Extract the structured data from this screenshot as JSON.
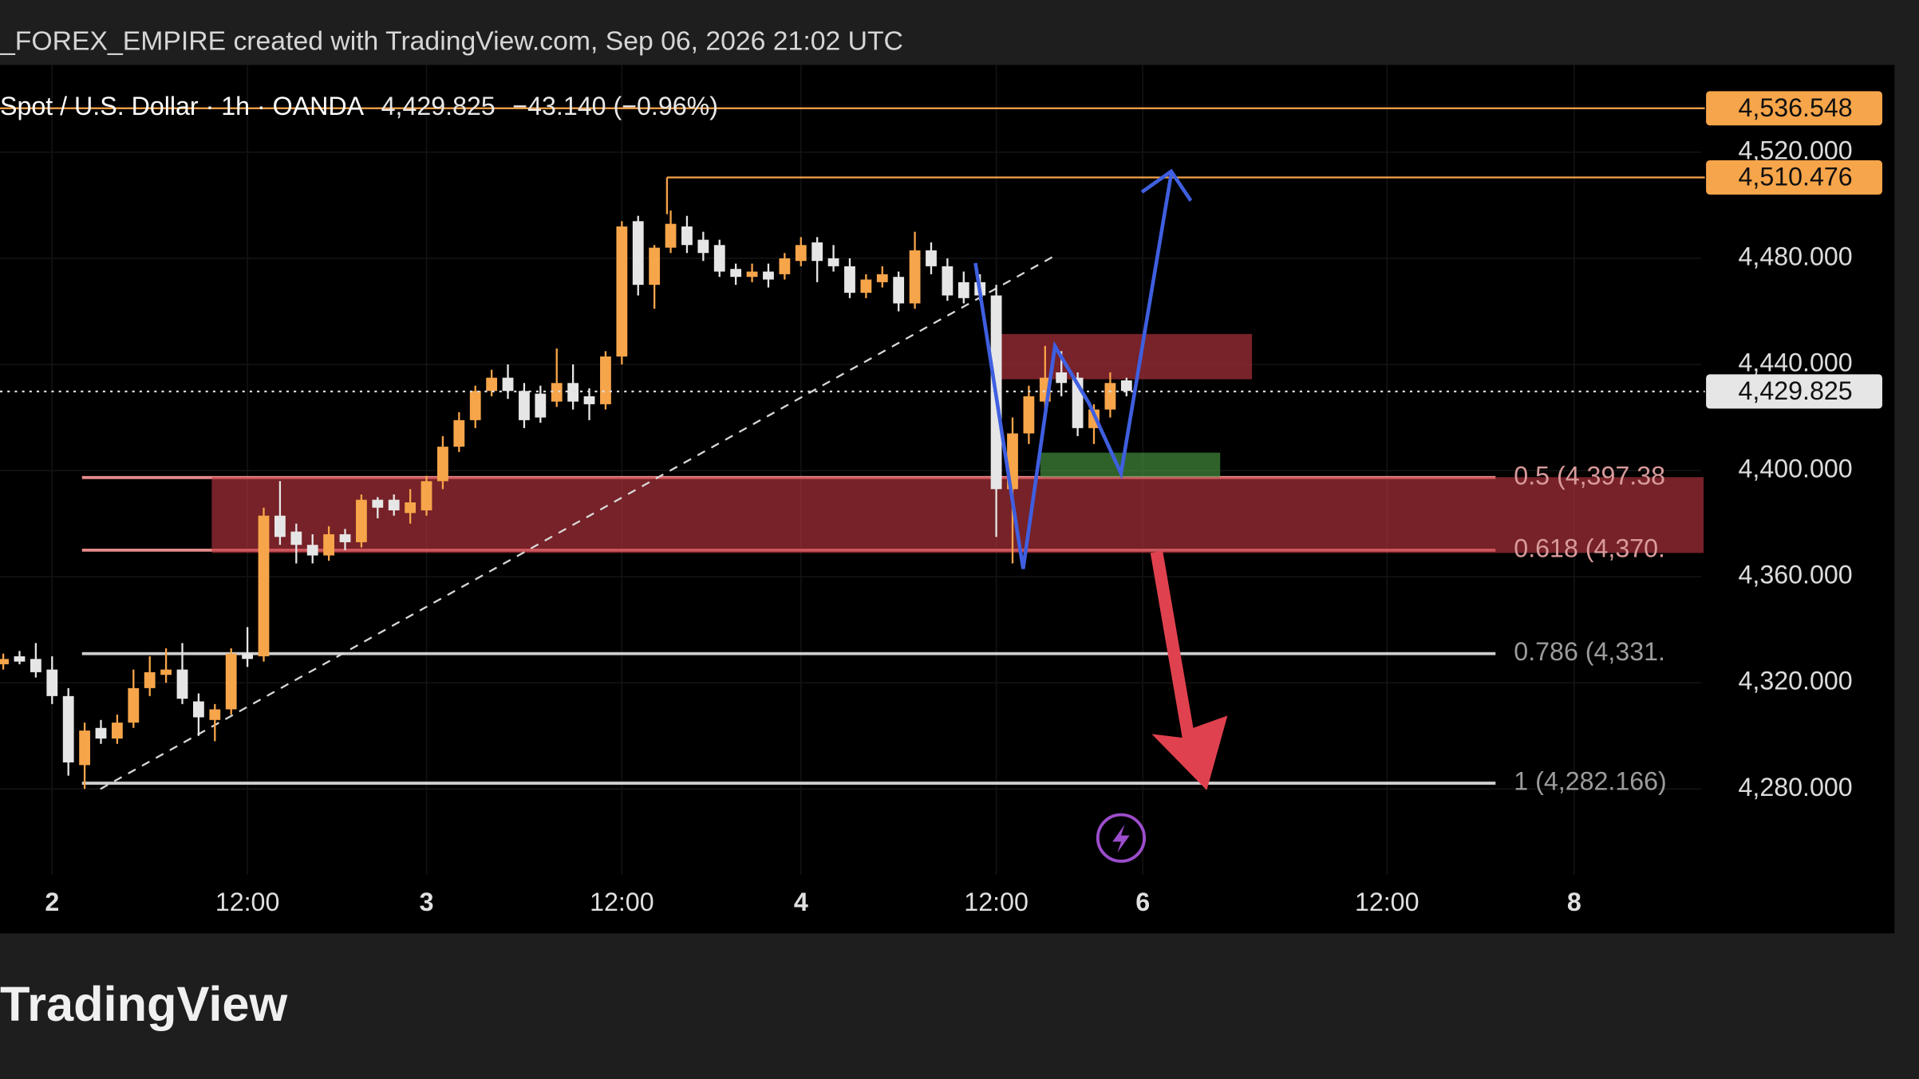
{
  "header": {
    "title": "_FOREX_EMPIRE created with TradingView.com, Sep 06, 2026 21:02 UTC"
  },
  "chart_data": {
    "type": "candlestick",
    "legend": {
      "symbol": "Spot / U.S. Dollar · 1h · OANDA",
      "last": "4,429.825",
      "change": "−43.140 (−0.96%)"
    },
    "up_color": "#f7a54a",
    "down_color": "#e6e6e6",
    "open": [
      4327,
      4330,
      4329,
      4325,
      4315,
      4289,
      4303,
      4299,
      4305,
      4318,
      4323,
      4325,
      4313,
      4306,
      4310,
      4331,
      4330,
      4383,
      4377,
      4372,
      4368,
      4376,
      4373,
      4389,
      4389,
      4384,
      4385,
      4396,
      4409,
      4419,
      4430,
      4435,
      4430,
      4429,
      4426,
      4433,
      4428,
      4425,
      4443,
      4494,
      4470,
      4484,
      4492,
      4487,
      4485,
      4476,
      4473,
      4475,
      4474,
      4479,
      4486,
      4480,
      4477,
      4467,
      4471,
      4473,
      4463,
      4483,
      4477,
      4471,
      4471,
      4466,
      4393,
      4414,
      4426,
      4437,
      4435,
      4416,
      4423,
      4434
    ],
    "high": [
      4331,
      4332,
      4335,
      4330,
      4318,
      4305,
      4306,
      4308,
      4325,
      4330,
      4333,
      4335,
      4316,
      4312,
      4333,
      4341,
      4386,
      4396,
      4380,
      4376,
      4379,
      4378,
      4391,
      4390,
      4391,
      4393,
      4398,
      4413,
      4422,
      4432,
      4438,
      4440,
      4433,
      4432,
      4446,
      4440,
      4431,
      4445,
      4494,
      4496,
      4485,
      4498,
      4496,
      4490,
      4487,
      4478,
      4478,
      4478,
      4482,
      4488,
      4488,
      4485,
      4480,
      4474,
      4477,
      4475,
      4490,
      4486,
      4480,
      4475,
      4474,
      4470,
      4420,
      4432,
      4447,
      4445,
      4437,
      4425,
      4437,
      4435
    ],
    "low": [
      4325,
      4327,
      4322,
      4312,
      4285,
      4280,
      4297,
      4297,
      4303,
      4315,
      4320,
      4312,
      4300,
      4298,
      4308,
      4326,
      4328,
      4372,
      4365,
      4365,
      4366,
      4370,
      4371,
      4382,
      4383,
      4380,
      4383,
      4393,
      4407,
      4416,
      4428,
      4427,
      4416,
      4418,
      4424,
      4423,
      4419,
      4423,
      4440,
      4466,
      4461,
      4482,
      4482,
      4479,
      4473,
      4470,
      4471,
      4469,
      4472,
      4477,
      4471,
      4475,
      4465,
      4465,
      4469,
      4460,
      4461,
      4474,
      4464,
      4463,
      4464,
      4375,
      4365,
      4410,
      4420,
      4428,
      4413,
      4410,
      4420,
      4428
    ],
    "close": [
      4329,
      4328,
      4324,
      4315,
      4290,
      4302,
      4299,
      4305,
      4318,
      4324,
      4325,
      4314,
      4307,
      4310,
      4331,
      4329,
      4383,
      4375,
      4372,
      4368,
      4376,
      4373,
      4389,
      4386,
      4385,
      4388,
      4396,
      4409,
      4419,
      4430,
      4435,
      4430,
      4419,
      4420,
      4433,
      4426,
      4425,
      4443,
      4492,
      4470,
      4484,
      4493,
      4485,
      4482,
      4475,
      4473,
      4475,
      4472,
      4480,
      4485,
      4479,
      4477,
      4467,
      4472,
      4474,
      4463,
      4483,
      4477,
      4466,
      4465,
      4466,
      4393,
      4414,
      4428,
      4435,
      4433,
      4416,
      4423,
      4433,
      4430
    ],
    "ylim": [
      4247.7,
      4552.9
    ],
    "yticks": [
      {
        "value": 4520,
        "label": "4,520.000"
      },
      {
        "value": 4480,
        "label": "4,480.000"
      },
      {
        "value": 4440,
        "label": "4,440.000"
      },
      {
        "value": 4400,
        "label": "4,400.000"
      },
      {
        "value": 4360,
        "label": "4,360.000"
      },
      {
        "value": 4320,
        "label": "4,320.000"
      },
      {
        "value": 4280,
        "label": "4,280.000"
      }
    ],
    "xlim": [
      -0.2,
      104.3
    ],
    "xticks": [
      {
        "value": 3,
        "label": "2"
      },
      {
        "value": 15,
        "label": "12:00"
      },
      {
        "value": 26,
        "label": "3"
      },
      {
        "value": 38,
        "label": "12:00"
      },
      {
        "value": 49,
        "label": "4"
      },
      {
        "value": 61,
        "label": "12:00"
      },
      {
        "value": 70,
        "label": "6"
      },
      {
        "value": 85,
        "label": "12:00"
      },
      {
        "value": 96.5,
        "label": "8"
      }
    ],
    "grid": true,
    "price_lines": [
      {
        "value": 4536.548,
        "label": "4,536.548"
      },
      {
        "value": 4510.476,
        "label": "4,510.476"
      }
    ],
    "price_line_color": "#f7a54a",
    "last_price": {
      "value": 4429.825,
      "label": "4,429.825"
    },
    "fib_levels": [
      {
        "value": 4397.38,
        "label": "0.5 (4,397.38"
      },
      {
        "value": 4370,
        "label": "0.618 (4,370."
      },
      {
        "value": 4331,
        "label": "0.786 (4,331."
      },
      {
        "value": 4282.166,
        "label": "1 (4,282.166)"
      }
    ]
  },
  "footer": {
    "logo": "TradingView"
  }
}
